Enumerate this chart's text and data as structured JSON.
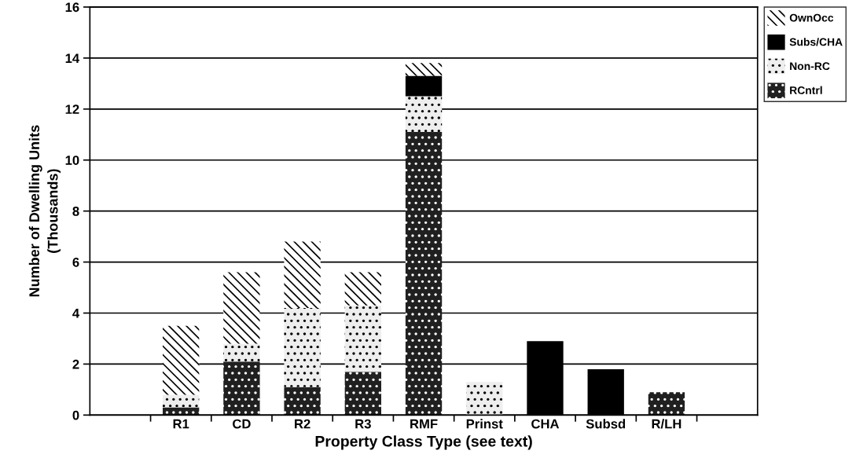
{
  "chart_data": {
    "type": "bar",
    "stacked": true,
    "xlabel": "Property Class Type (see text)",
    "ylabel": "Number of Dwelling Units\n(Thousands)",
    "categories": [
      null,
      "R1",
      "CD",
      "R2",
      "R3",
      "RMF",
      "Prinst",
      "CHA",
      "Subsd",
      "R/LH",
      null
    ],
    "series": [
      {
        "name": "RCntrl",
        "color": "#202020",
        "values": [
          null,
          0.3,
          2.1,
          1.1,
          1.7,
          11.1,
          null,
          null,
          null,
          0.9,
          null
        ]
      },
      {
        "name": "Non-RC",
        "color": "#eeeeee",
        "values": [
          null,
          0.5,
          0.7,
          3.1,
          2.6,
          1.4,
          1.3,
          null,
          null,
          null,
          null
        ]
      },
      {
        "name": "Subs/CHA",
        "color": "#000000",
        "values": [
          null,
          null,
          null,
          null,
          null,
          0.8,
          null,
          2.9,
          1.8,
          null,
          null
        ]
      },
      {
        "name": "OwnOcc",
        "color": "#ffffff",
        "values": [
          null,
          2.7,
          2.8,
          2.6,
          1.3,
          0.5,
          null,
          null,
          null,
          null,
          null
        ]
      }
    ],
    "ylim": [
      0,
      16
    ],
    "yticks": [
      0,
      2,
      4,
      6,
      8,
      10,
      12,
      14,
      16
    ],
    "grid": "y",
    "legend": "top right"
  }
}
